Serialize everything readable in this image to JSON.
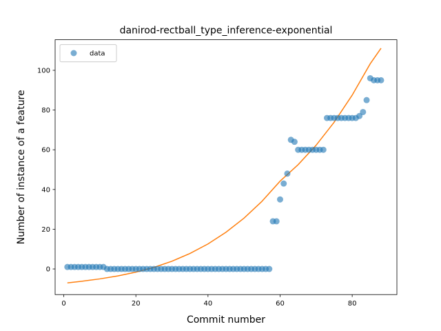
{
  "chart_data": {
    "type": "scatter",
    "title": "danirod-rectball_type_inference-exponential",
    "xlabel": "Commit number",
    "ylabel": "Number of instance of a feature",
    "xlim": [
      -2.4,
      92.4
    ],
    "ylim": [
      -12.9,
      115.4
    ],
    "xticks": [
      0,
      20,
      40,
      60,
      80
    ],
    "yticks": [
      0,
      20,
      40,
      60,
      80,
      100
    ],
    "grid": false,
    "legend": {
      "placement": "top-left",
      "entries": [
        "data"
      ]
    },
    "colors": {
      "data": "#1f77b4",
      "fit": "#ff7f0e"
    },
    "series": [
      {
        "name": "data",
        "kind": "scatter",
        "x": [
          1,
          2,
          3,
          4,
          5,
          6,
          7,
          8,
          9,
          10,
          11,
          12,
          13,
          14,
          15,
          16,
          17,
          18,
          19,
          20,
          21,
          22,
          23,
          24,
          25,
          26,
          27,
          28,
          29,
          30,
          31,
          32,
          33,
          34,
          35,
          36,
          37,
          38,
          39,
          40,
          41,
          42,
          43,
          44,
          45,
          46,
          47,
          48,
          49,
          50,
          51,
          52,
          53,
          54,
          55,
          56,
          57,
          58,
          59,
          60,
          61,
          62,
          63,
          64,
          65,
          66,
          67,
          68,
          69,
          70,
          71,
          72,
          73,
          74,
          75,
          76,
          77,
          78,
          79,
          80,
          81,
          82,
          83,
          84,
          85,
          86,
          87,
          88
        ],
        "y": [
          1,
          1,
          1,
          1,
          1,
          1,
          1,
          1,
          1,
          1,
          1,
          0,
          0,
          0,
          0,
          0,
          0,
          0,
          0,
          0,
          0,
          0,
          0,
          0,
          0,
          0,
          0,
          0,
          0,
          0,
          0,
          0,
          0,
          0,
          0,
          0,
          0,
          0,
          0,
          0,
          0,
          0,
          0,
          0,
          0,
          0,
          0,
          0,
          0,
          0,
          0,
          0,
          0,
          0,
          0,
          0,
          0,
          24,
          24,
          35,
          43,
          48,
          65,
          64,
          60,
          60,
          60,
          60,
          60,
          60,
          60,
          60,
          76,
          76,
          76,
          76,
          76,
          76,
          76,
          76,
          76,
          77,
          79,
          85,
          96,
          95,
          95,
          95
        ]
      },
      {
        "kind": "line",
        "x": [
          1,
          5,
          10,
          15,
          20,
          25,
          30,
          35,
          40,
          45,
          50,
          55,
          60,
          65,
          70,
          75,
          80,
          85,
          88
        ],
        "y": [
          -7,
          -6.2,
          -5.0,
          -3.5,
          -1.6,
          0.8,
          3.9,
          7.8,
          12.6,
          18.5,
          25.6,
          34.1,
          44.2,
          52.5,
          62.3,
          73.9,
          87.5,
          103.3,
          111.1
        ]
      }
    ]
  }
}
